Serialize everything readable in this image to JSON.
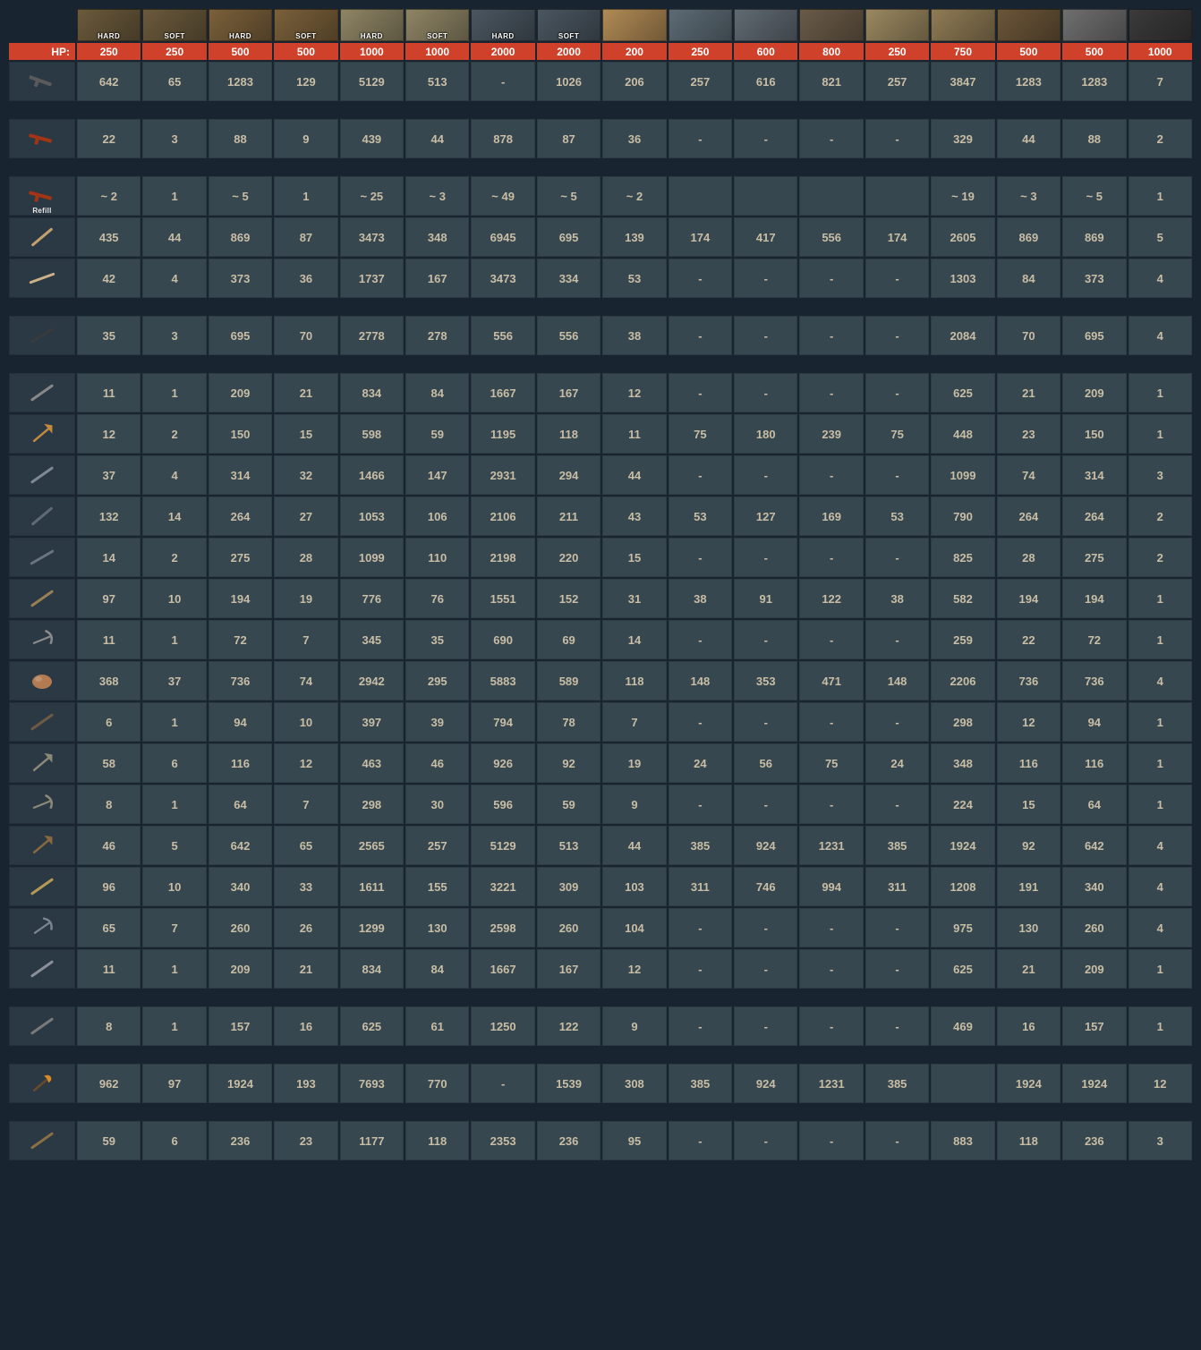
{
  "hp_label": "HP:",
  "refill_label": "Refill",
  "hardsoft": {
    "hard": "HARD",
    "soft": "SOFT"
  },
  "header_cols": [
    {
      "name": "twig-hard",
      "fill": "#6b5a3c",
      "overlay": "HARD"
    },
    {
      "name": "twig-soft",
      "fill": "#6b5a3c",
      "overlay": "SOFT"
    },
    {
      "name": "wood-hard",
      "fill": "#7a603a",
      "overlay": "HARD"
    },
    {
      "name": "wood-soft",
      "fill": "#7a603a",
      "overlay": "SOFT"
    },
    {
      "name": "stone-hard",
      "fill": "#8f8565",
      "overlay": "HARD"
    },
    {
      "name": "stone-soft",
      "fill": "#8f8565",
      "overlay": "SOFT"
    },
    {
      "name": "metal-hard",
      "fill": "#4a5660",
      "overlay": "HARD"
    },
    {
      "name": "metal-soft",
      "fill": "#4a5660",
      "overlay": "SOFT"
    },
    {
      "name": "wood-door",
      "fill": "#b08a55",
      "overlay": ""
    },
    {
      "name": "sheet-door",
      "fill": "#5d6b75",
      "overlay": ""
    },
    {
      "name": "garage-door",
      "fill": "#606a72",
      "overlay": ""
    },
    {
      "name": "armored-door",
      "fill": "#6a5b48",
      "overlay": ""
    },
    {
      "name": "ladder-hatch",
      "fill": "#9a8860",
      "overlay": ""
    },
    {
      "name": "shopfront",
      "fill": "#8f7b55",
      "overlay": ""
    },
    {
      "name": "wood-barricade",
      "fill": "#6b5538",
      "overlay": ""
    },
    {
      "name": "stone-wall",
      "fill": "#6f6f6f",
      "overlay": ""
    },
    {
      "name": "furnace",
      "fill": "#3a3a3a",
      "overlay": ""
    }
  ],
  "hp": [
    "250",
    "250",
    "500",
    "500",
    "1000",
    "1000",
    "2000",
    "2000",
    "200",
    "250",
    "600",
    "800",
    "250",
    "750",
    "500",
    "500",
    "1000"
  ],
  "rows": [
    {
      "name": "chainsaw",
      "color": "#5a5a5a",
      "angle": 20,
      "spaced": false,
      "refill": false,
      "v": [
        "642",
        "65",
        "1283",
        "129",
        "5129",
        "513",
        "-",
        "1026",
        "206",
        "257",
        "616",
        "821",
        "257",
        "3847",
        "1283",
        "1283",
        "7"
      ]
    },
    {
      "name": "flamethrower",
      "color": "#a33514",
      "angle": 15,
      "spaced": true,
      "refill": false,
      "v": [
        "22",
        "3",
        "88",
        "9",
        "439",
        "44",
        "878",
        "87",
        "36",
        "-",
        "-",
        "-",
        "-",
        "329",
        "44",
        "88",
        "2"
      ]
    },
    {
      "name": "flamethrower-refill",
      "color": "#a33514",
      "angle": 15,
      "spaced": true,
      "refill": true,
      "v": [
        "~ 2",
        "1",
        "~ 5",
        "1",
        "~ 25",
        "~ 3",
        "~ 49",
        "~ 5",
        "~ 2",
        "",
        "",
        "",
        "",
        "~ 19",
        "~ 3",
        "~ 5",
        "1"
      ]
    },
    {
      "name": "bone-club",
      "color": "#c2a16a",
      "angle": -40,
      "spaced": false,
      "refill": false,
      "v": [
        "435",
        "44",
        "869",
        "87",
        "3473",
        "348",
        "6945",
        "695",
        "139",
        "174",
        "417",
        "556",
        "174",
        "2605",
        "869",
        "869",
        "5"
      ]
    },
    {
      "name": "bone-knife",
      "color": "#cdb186",
      "angle": -20,
      "spaced": false,
      "refill": false,
      "v": [
        "42",
        "4",
        "373",
        "36",
        "1737",
        "167",
        "3473",
        "334",
        "53",
        "-",
        "-",
        "-",
        "-",
        "1303",
        "84",
        "373",
        "4"
      ]
    },
    {
      "name": "cleaver",
      "color": "#3a3a3a",
      "angle": -30,
      "spaced": true,
      "refill": false,
      "v": [
        "35",
        "3",
        "695",
        "70",
        "2778",
        "278",
        "556",
        "556",
        "38",
        "-",
        "-",
        "-",
        "-",
        "2084",
        "70",
        "695",
        "4"
      ]
    },
    {
      "name": "knife",
      "color": "#888888",
      "angle": -35,
      "spaced": true,
      "refill": false,
      "v": [
        "11",
        "1",
        "209",
        "21",
        "834",
        "84",
        "1667",
        "167",
        "12",
        "-",
        "-",
        "-",
        "-",
        "625",
        "21",
        "209",
        "1"
      ]
    },
    {
      "name": "hatchet",
      "color": "#c38a3e",
      "angle": -40,
      "spaced": false,
      "refill": false,
      "v": [
        "12",
        "2",
        "150",
        "15",
        "598",
        "59",
        "1195",
        "118",
        "11",
        "75",
        "180",
        "239",
        "75",
        "448",
        "23",
        "150",
        "1"
      ]
    },
    {
      "name": "longsword",
      "color": "#7f8894",
      "angle": -35,
      "spaced": false,
      "refill": false,
      "v": [
        "37",
        "4",
        "314",
        "32",
        "1466",
        "147",
        "2931",
        "294",
        "44",
        "-",
        "-",
        "-",
        "-",
        "1099",
        "74",
        "314",
        "3"
      ]
    },
    {
      "name": "mace",
      "color": "#5f6a73",
      "angle": -40,
      "spaced": false,
      "refill": false,
      "v": [
        "132",
        "14",
        "264",
        "27",
        "1053",
        "106",
        "2106",
        "211",
        "43",
        "53",
        "127",
        "169",
        "53",
        "790",
        "264",
        "264",
        "2"
      ]
    },
    {
      "name": "machete",
      "color": "#6a7580",
      "angle": -30,
      "spaced": false,
      "refill": false,
      "v": [
        "14",
        "2",
        "275",
        "28",
        "1099",
        "110",
        "2198",
        "220",
        "15",
        "-",
        "-",
        "-",
        "-",
        "825",
        "28",
        "275",
        "2"
      ]
    },
    {
      "name": "paddle",
      "color": "#9a7f55",
      "angle": -35,
      "spaced": false,
      "refill": false,
      "v": [
        "97",
        "10",
        "194",
        "19",
        "776",
        "76",
        "1551",
        "152",
        "31",
        "38",
        "91",
        "122",
        "38",
        "582",
        "194",
        "194",
        "1"
      ]
    },
    {
      "name": "pickaxe",
      "color": "#8a8a8a",
      "angle": -22,
      "spaced": false,
      "refill": false,
      "v": [
        "11",
        "1",
        "72",
        "7",
        "345",
        "35",
        "690",
        "69",
        "14",
        "-",
        "-",
        "-",
        "-",
        "259",
        "22",
        "72",
        "1"
      ]
    },
    {
      "name": "rock",
      "color": "#b37b52",
      "angle": 0,
      "spaced": false,
      "refill": false,
      "v": [
        "368",
        "37",
        "736",
        "74",
        "2942",
        "295",
        "5883",
        "589",
        "118",
        "148",
        "353",
        "471",
        "148",
        "2206",
        "736",
        "736",
        "4"
      ]
    },
    {
      "name": "salvaged-cleaver",
      "color": "#6f5a42",
      "angle": -35,
      "spaced": false,
      "refill": false,
      "v": [
        "6",
        "1",
        "94",
        "10",
        "397",
        "39",
        "794",
        "78",
        "7",
        "-",
        "-",
        "-",
        "-",
        "298",
        "12",
        "94",
        "1"
      ]
    },
    {
      "name": "stone-hatchet",
      "color": "#8b8878",
      "angle": -40,
      "spaced": false,
      "refill": false,
      "v": [
        "58",
        "6",
        "116",
        "12",
        "463",
        "46",
        "926",
        "92",
        "19",
        "24",
        "56",
        "75",
        "24",
        "348",
        "116",
        "116",
        "1"
      ]
    },
    {
      "name": "stone-pickaxe",
      "color": "#8b8878",
      "angle": -22,
      "spaced": false,
      "refill": false,
      "v": [
        "8",
        "1",
        "64",
        "7",
        "298",
        "30",
        "596",
        "59",
        "9",
        "-",
        "-",
        "-",
        "-",
        "224",
        "15",
        "64",
        "1"
      ]
    },
    {
      "name": "salvaged-axe",
      "color": "#8a6a3d",
      "angle": -40,
      "spaced": false,
      "refill": false,
      "v": [
        "46",
        "5",
        "642",
        "65",
        "2565",
        "257",
        "5129",
        "513",
        "44",
        "385",
        "924",
        "1231",
        "385",
        "1924",
        "92",
        "642",
        "4"
      ]
    },
    {
      "name": "salvaged-hammer",
      "color": "#b59a55",
      "angle": -35,
      "spaced": false,
      "refill": false,
      "v": [
        "96",
        "10",
        "340",
        "33",
        "1611",
        "155",
        "3221",
        "309",
        "103",
        "311",
        "746",
        "994",
        "311",
        "1208",
        "191",
        "340",
        "4"
      ]
    },
    {
      "name": "salvaged-icepick",
      "color": "#7a858f",
      "angle": -35,
      "spaced": false,
      "refill": false,
      "v": [
        "65",
        "7",
        "260",
        "26",
        "1299",
        "130",
        "2598",
        "260",
        "104",
        "-",
        "-",
        "-",
        "-",
        "975",
        "130",
        "260",
        "4"
      ]
    },
    {
      "name": "salvaged-sword",
      "color": "#8a9098",
      "angle": -35,
      "spaced": false,
      "refill": false,
      "v": [
        "11",
        "1",
        "209",
        "21",
        "834",
        "84",
        "1667",
        "167",
        "12",
        "-",
        "-",
        "-",
        "-",
        "625",
        "21",
        "209",
        "1"
      ]
    },
    {
      "name": "spear-stone",
      "color": "#7a7a7a",
      "angle": -35,
      "spaced": true,
      "refill": false,
      "v": [
        "8",
        "1",
        "157",
        "16",
        "625",
        "61",
        "1250",
        "122",
        "9",
        "-",
        "-",
        "-",
        "-",
        "469",
        "16",
        "157",
        "1"
      ]
    },
    {
      "name": "torch",
      "color": "#d68a2a",
      "angle": -40,
      "spaced": true,
      "refill": false,
      "v": [
        "962",
        "97",
        "1924",
        "193",
        "7693",
        "770",
        "-",
        "1539",
        "308",
        "385",
        "924",
        "1231",
        "385",
        "",
        "1924",
        "1924",
        "12"
      ]
    },
    {
      "name": "wooden-spear",
      "color": "#8a6f45",
      "angle": -35,
      "spaced": true,
      "refill": false,
      "v": [
        "59",
        "6",
        "236",
        "23",
        "1177",
        "118",
        "2353",
        "236",
        "95",
        "-",
        "-",
        "-",
        "-",
        "883",
        "118",
        "236",
        "3"
      ]
    }
  ]
}
